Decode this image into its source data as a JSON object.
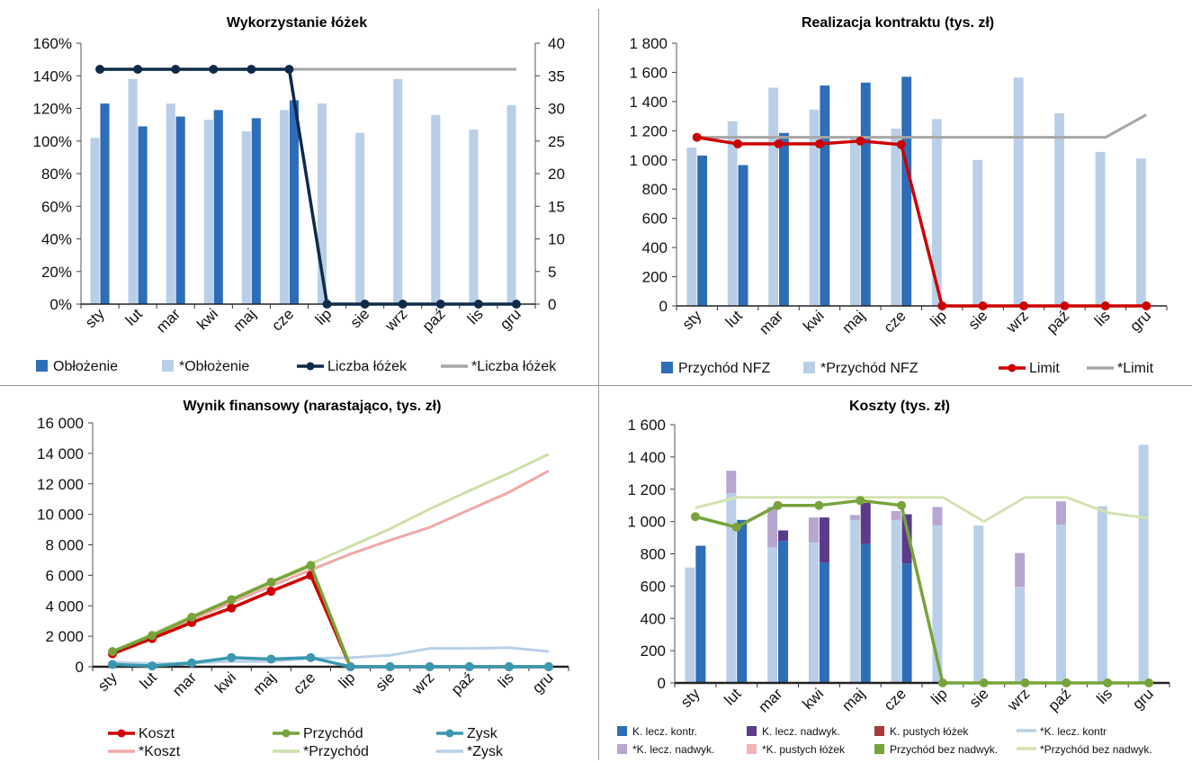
{
  "chart_data": [
    {
      "type": "bar",
      "title": "Wykorzystanie łóżek",
      "categories": [
        "sty",
        "lut",
        "mar",
        "kwi",
        "maj",
        "cze",
        "lip",
        "sie",
        "wrz",
        "paź",
        "lis",
        "gru"
      ],
      "y_left": {
        "ticks": [
          "0%",
          "20%",
          "40%",
          "60%",
          "80%",
          "100%",
          "120%",
          "140%",
          "160%"
        ],
        "ylim": [
          0,
          1.6
        ]
      },
      "y_right": {
        "ticks": [
          "0",
          "5",
          "10",
          "15",
          "20",
          "25",
          "30",
          "35",
          "40"
        ],
        "ylim": [
          0,
          40
        ]
      },
      "series": [
        {
          "name": "Obłożenie",
          "kind": "bar",
          "axis": "left",
          "color": "#2e6db8",
          "values": [
            1.23,
            1.09,
            1.15,
            1.19,
            1.14,
            1.25,
            null,
            null,
            null,
            null,
            null,
            null
          ]
        },
        {
          "name": "*Obłożenie",
          "kind": "bar",
          "axis": "left",
          "color": "#b9cfe7",
          "values": [
            1.02,
            1.38,
            1.23,
            1.13,
            1.06,
            1.19,
            1.23,
            1.05,
            1.38,
            1.16,
            1.07,
            1.22
          ]
        },
        {
          "name": "Liczba łóżek",
          "kind": "line",
          "axis": "right",
          "color": "#0f2a4a",
          "markers": true,
          "values": [
            36,
            36,
            36,
            36,
            36,
            36,
            0,
            0,
            0,
            0,
            0,
            0
          ]
        },
        {
          "name": "*Liczba łóżek",
          "kind": "line",
          "axis": "right",
          "color": "#a6a6a6",
          "markers": false,
          "values": [
            36,
            36,
            36,
            36,
            36,
            36,
            36,
            36,
            36,
            36,
            36,
            36
          ]
        }
      ],
      "legend": "bottom"
    },
    {
      "type": "bar",
      "title": "Realizacja  kontraktu (tys. zł)",
      "categories": [
        "sty",
        "lut",
        "mar",
        "kwi",
        "maj",
        "cze",
        "lip",
        "sie",
        "wrz",
        "paź",
        "lis",
        "gru"
      ],
      "y_left": {
        "ticks": [
          "0",
          "200",
          "400",
          "600",
          "800",
          "1 000",
          "1 200",
          "1 400",
          "1 600",
          "1 800"
        ],
        "ylim": [
          0,
          1800
        ]
      },
      "series": [
        {
          "name": "Przychód NFZ",
          "kind": "bar",
          "color": "#2e6db8",
          "values": [
            1030,
            965,
            1185,
            1510,
            1530,
            1570,
            null,
            null,
            null,
            null,
            null,
            null
          ]
        },
        {
          "name": "*Przychód NFZ",
          "kind": "bar",
          "color": "#b9cfe7",
          "values": [
            1085,
            1265,
            1495,
            1345,
            1155,
            1215,
            1280,
            1000,
            1565,
            1320,
            1055,
            1010
          ]
        },
        {
          "name": "Limit",
          "kind": "line",
          "color": "#cc0000",
          "markers": true,
          "values": [
            1155,
            1110,
            1110,
            1110,
            1130,
            1105,
            0,
            0,
            0,
            0,
            0,
            0
          ]
        },
        {
          "name": "*Limit",
          "kind": "line",
          "color": "#a6a6a6",
          "markers": false,
          "values": [
            1155,
            1155,
            1155,
            1155,
            1155,
            1155,
            1155,
            1155,
            1155,
            1155,
            1155,
            1310
          ]
        }
      ],
      "legend": "bottom"
    },
    {
      "type": "line",
      "title": "Wynik finansowy  (narastająco, tys. zł)",
      "categories": [
        "sty",
        "lut",
        "mar",
        "kwi",
        "maj",
        "cze",
        "lip",
        "sie",
        "wrz",
        "paź",
        "lis",
        "gru"
      ],
      "y_left": {
        "ticks": [
          "0",
          "2 000",
          "4 000",
          "6 000",
          "8 000",
          "10 000",
          "12 000",
          "14 000",
          "16 000"
        ],
        "ylim": [
          0,
          16000
        ]
      },
      "series": [
        {
          "name": "Koszt",
          "color": "#cc0000",
          "markers": true,
          "values": [
            850,
            1850,
            2900,
            3850,
            4950,
            6000,
            0,
            0,
            0,
            0,
            0,
            0
          ]
        },
        {
          "name": "Przychód",
          "color": "#77a33a",
          "markers": true,
          "values": [
            1000,
            2050,
            3250,
            4400,
            5550,
            6650,
            0,
            0,
            0,
            0,
            0,
            0
          ]
        },
        {
          "name": "Zysk",
          "color": "#3a98b0",
          "markers": true,
          "values": [
            150,
            50,
            250,
            600,
            500,
            600,
            0,
            0,
            0,
            0,
            0,
            0
          ]
        },
        {
          "name": "*Koszt",
          "color": "#f0a8a8",
          "markers": false,
          "values": [
            850,
            2000,
            3100,
            4200,
            5300,
            6350,
            7400,
            8300,
            9150,
            10300,
            11450,
            12850
          ]
        },
        {
          "name": "*Przychód",
          "color": "#cde0a8",
          "markers": false,
          "values": [
            1000,
            2150,
            3300,
            4450,
            5600,
            6750,
            7900,
            9050,
            10350,
            11550,
            12700,
            13950
          ]
        },
        {
          "name": "*Zysk",
          "color": "#b9cfe7",
          "markers": false,
          "values": [
            300,
            200,
            250,
            350,
            350,
            550,
            600,
            750,
            1200,
            1200,
            1250,
            1000
          ]
        }
      ],
      "legend": "bottom"
    },
    {
      "type": "bar",
      "title": "Koszty (tys. zł)",
      "categories": [
        "sty",
        "lut",
        "mar",
        "kwi",
        "maj",
        "cze",
        "lip",
        "sie",
        "wrz",
        "paź",
        "lis",
        "gru"
      ],
      "y_left": {
        "ticks": [
          "0",
          "200",
          "400",
          "600",
          "800",
          "1 000",
          "1 200",
          "1 400",
          "1 600"
        ],
        "ylim": [
          0,
          1600
        ]
      },
      "series": [
        {
          "name": "K. lecz. kontr.",
          "stack": "A",
          "color": "#2e6db8",
          "values": [
            850,
            1010,
            880,
            745,
            860,
            740,
            null,
            null,
            null,
            null,
            null,
            null
          ]
        },
        {
          "name": "K. lecz. nadwyk.",
          "stack": "A",
          "color": "#5b3a8a",
          "values": [
            0,
            0,
            65,
            280,
            255,
            305,
            null,
            null,
            null,
            null,
            null,
            null
          ]
        },
        {
          "name": "K. pustych łóżek",
          "stack": "A",
          "color": "#a63a3a",
          "values": [
            0,
            0,
            0,
            0,
            0,
            0,
            null,
            null,
            null,
            null,
            null,
            null
          ]
        },
        {
          "name": "*K. lecz. kontr",
          "stack": "B",
          "color": "#b9cfe7",
          "values": [
            715,
            1175,
            840,
            870,
            1010,
            1010,
            975,
            975,
            595,
            980,
            1095,
            1475
          ]
        },
        {
          "name": "*K. lecz. nadwyk.",
          "stack": "B",
          "color": "#b7a6d0",
          "values": [
            0,
            140,
            250,
            155,
            30,
            55,
            115,
            0,
            210,
            145,
            0,
            0
          ]
        },
        {
          "name": "*K. pustych łóżek",
          "stack": "B",
          "color": "#f0b4b4",
          "values": [
            0,
            0,
            0,
            0,
            0,
            0,
            0,
            0,
            0,
            0,
            0,
            0
          ]
        },
        {
          "name": "Przychód bez nadwyk.",
          "kind": "line",
          "color": "#77a33a",
          "markers": true,
          "values": [
            1030,
            965,
            1100,
            1100,
            1130,
            1100,
            0,
            0,
            0,
            0,
            0,
            0
          ]
        },
        {
          "name": "*Przychód bez nadwyk.",
          "kind": "line",
          "color": "#d3e2b0",
          "markers": false,
          "values": [
            1085,
            1150,
            1150,
            1150,
            1150,
            1150,
            1150,
            1000,
            1150,
            1150,
            1055,
            1020
          ]
        }
      ],
      "legend": "bottom"
    }
  ]
}
